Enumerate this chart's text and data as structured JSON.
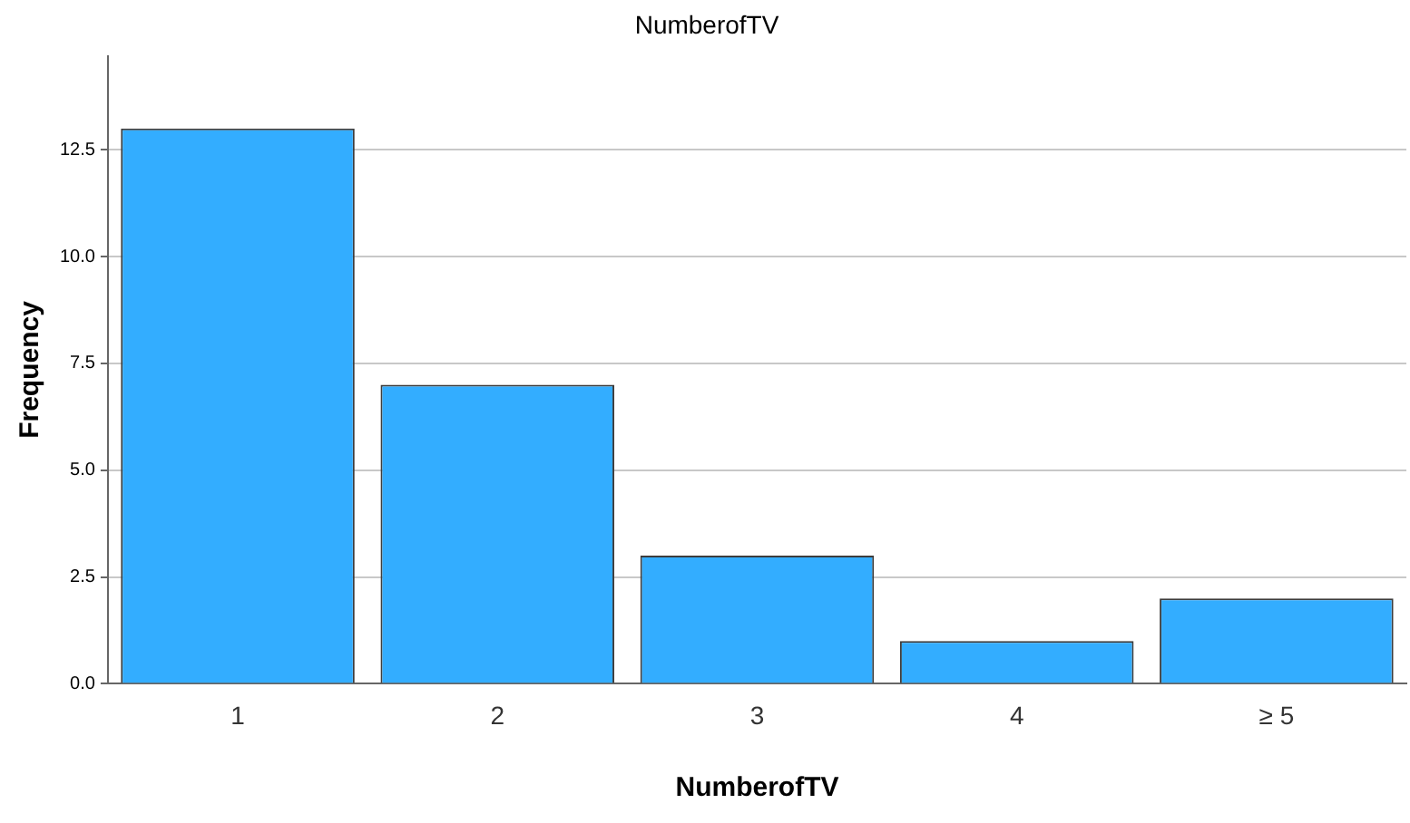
{
  "chart_data": {
    "type": "bar",
    "title": "NumberofTV",
    "xlabel": "NumberofTV",
    "ylabel": "Frequency",
    "categories": [
      "1",
      "2",
      "3",
      "4",
      "≥ 5"
    ],
    "values": [
      13,
      7,
      3,
      1,
      2
    ],
    "color": "#33adff",
    "ylim": [
      0,
      14.7
    ],
    "yticks": [
      {
        "value": 0,
        "label": "0.0"
      },
      {
        "value": 2.5,
        "label": "2.5"
      },
      {
        "value": 5,
        "label": "5.0"
      },
      {
        "value": 7.5,
        "label": "7.5"
      },
      {
        "value": 10,
        "label": "10.0"
      },
      {
        "value": 12.5,
        "label": "12.5"
      }
    ],
    "grid": "y",
    "legend": false
  }
}
